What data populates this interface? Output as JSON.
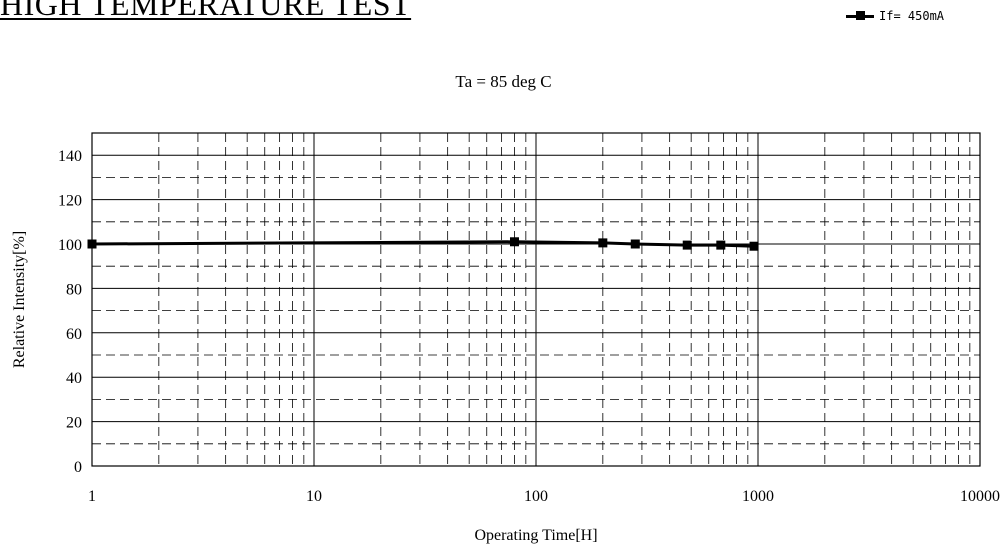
{
  "page_title": "HIGH TEMPERATURE TEST",
  "legend": {
    "label": "If= 450mA"
  },
  "chart_data": {
    "type": "line",
    "title": "Ta = 85 deg C",
    "xlabel": "Operating Time[H]",
    "ylabel": "Relative Intensity[%]",
    "x_scale": "log",
    "xlim": [
      1,
      10000
    ],
    "ylim": [
      0,
      150
    ],
    "x_tick_labels": [
      "1",
      "10",
      "100",
      "1000",
      "10000"
    ],
    "y_tick_labels": [
      "0",
      "20",
      "40",
      "60",
      "80",
      "100",
      "120",
      "140"
    ],
    "grid": true,
    "legend_position": "top-right",
    "series": [
      {
        "name": "If= 450mA",
        "color": "#000000",
        "marker": "square",
        "x": [
          1,
          80,
          200,
          280,
          480,
          680,
          960
        ],
        "y": [
          100,
          101,
          100.5,
          100,
          99.5,
          99.5,
          99
        ]
      }
    ]
  }
}
